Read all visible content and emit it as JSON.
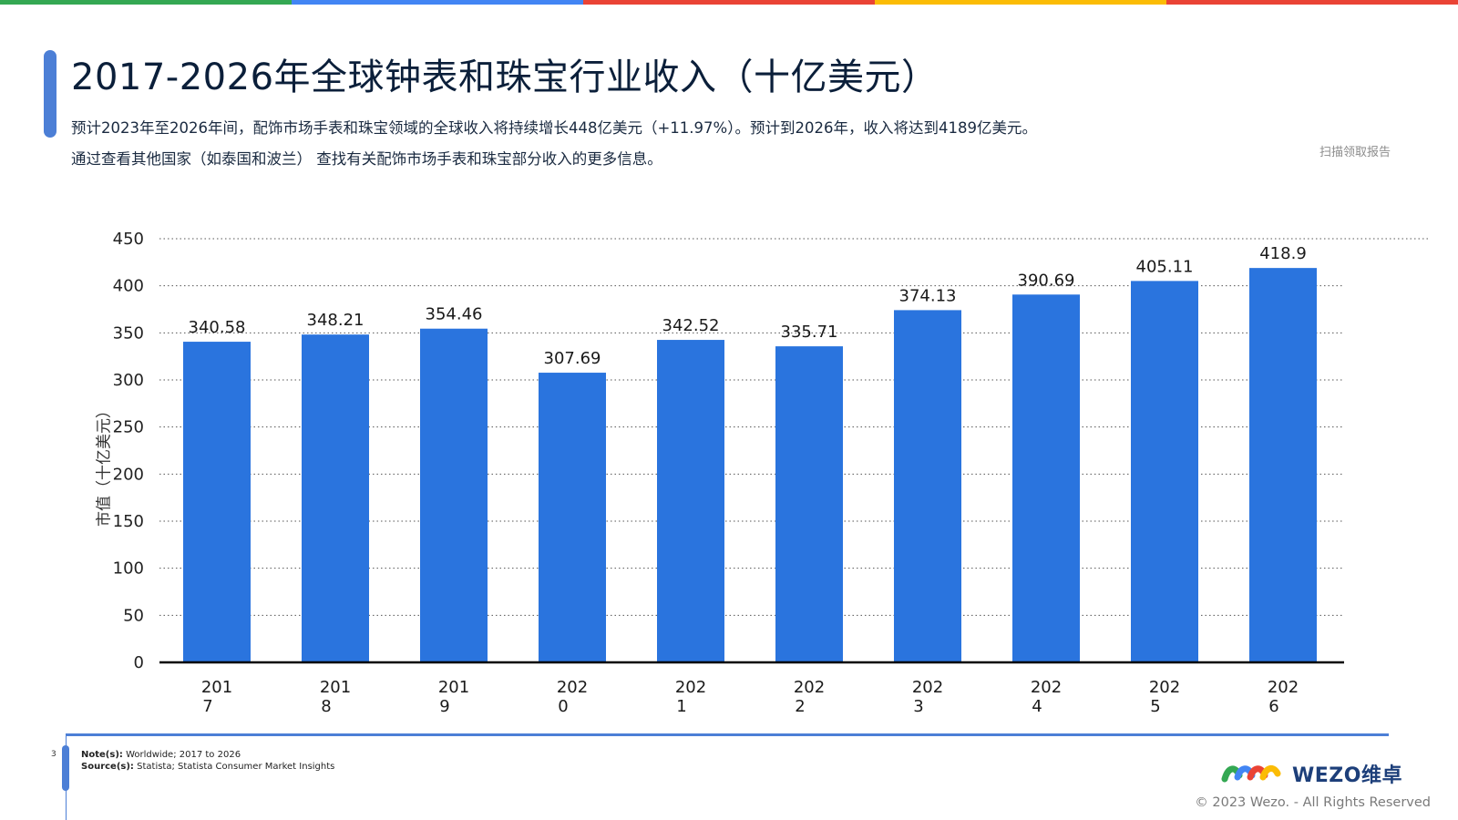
{
  "top_bar_colors": [
    "#34a853",
    "#4285f4",
    "#ea4335",
    "#fbbc05",
    "#ea4335"
  ],
  "header": {
    "title": "2017-2026年全球钟表和珠宝行业收入（十亿美元）",
    "description_line1": "预计2023年至2026年间，配饰市场手表和珠宝领域的全球收入将持续增长448亿美元（+11.97%）。预计到2026年，收入将达到4189亿美元。",
    "description_line2": "通过查看其他国家（如泰国和波兰） 查找有关配饰市场手表和珠宝部分收入的更多信息。",
    "scan_hint": "扫描领取报告"
  },
  "chart_data": {
    "type": "bar",
    "title": "2017-2026年全球钟表和珠宝行业收入（十亿美元）",
    "ylabel": "市值（十亿美元）",
    "xlabel": "",
    "ylim": [
      0,
      450
    ],
    "yticks": [
      0,
      50,
      100,
      150,
      200,
      250,
      300,
      350,
      400,
      450
    ],
    "grid": true,
    "bar_color": "#2a74de",
    "categories": [
      [
        "201",
        "7"
      ],
      [
        "201",
        "8"
      ],
      [
        "201",
        "9"
      ],
      [
        "202",
        "0"
      ],
      [
        "202",
        "1"
      ],
      [
        "202",
        "2"
      ],
      [
        "202",
        "3"
      ],
      [
        "202",
        "4"
      ],
      [
        "202",
        "5"
      ],
      [
        "202",
        "6"
      ]
    ],
    "values": [
      340.58,
      348.21,
      354.46,
      307.69,
      342.52,
      335.71,
      374.13,
      390.69,
      405.11,
      418.9
    ],
    "value_labels": [
      "340.58",
      "348.21",
      "354.46",
      "307.69",
      "342.52",
      "335.71",
      "374.13",
      "390.69",
      "405.11",
      "418.9"
    ]
  },
  "footer": {
    "page_number": "3",
    "note_label": "Note(s):",
    "note_text": "Worldwide; 2017 to 2026",
    "source_label": "Source(s):",
    "source_text": "Statista; Statista Consumer Market Insights",
    "logo_text": "WEZO维卓",
    "copyright": "© 2023 Wezo. - All Rights Reserved"
  }
}
